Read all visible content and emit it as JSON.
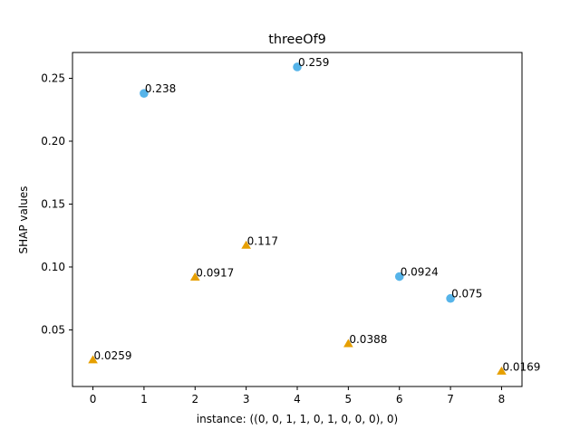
{
  "chart_data": {
    "type": "scatter",
    "title": "threeOf9",
    "xlabel": "instance: ((0, 0, 1, 1, 0, 1, 0, 0, 0), 0)",
    "ylabel": "SHAP values",
    "xlim": [
      -0.4,
      8.4
    ],
    "ylim": [
      0.005,
      0.2705
    ],
    "xticks": [
      0,
      1,
      2,
      3,
      4,
      5,
      6,
      7,
      8
    ],
    "xtick_labels": [
      "0",
      "1",
      "2",
      "3",
      "4",
      "5",
      "6",
      "7",
      "8"
    ],
    "yticks": [
      0.05,
      0.1,
      0.15,
      0.2,
      0.25
    ],
    "ytick_labels": [
      "0.05",
      "0.10",
      "0.15",
      "0.20",
      "0.25"
    ],
    "grid": false,
    "series": [
      {
        "marker": "circle",
        "color": "#56b4e9",
        "x": [
          1,
          4,
          6,
          7
        ],
        "y": [
          0.238,
          0.259,
          0.0924,
          0.075
        ],
        "labels": [
          "0.238",
          "0.259",
          "0.0924",
          "0.075"
        ]
      },
      {
        "marker": "triangle",
        "color": "#e69f00",
        "x": [
          0,
          2,
          3,
          5,
          8
        ],
        "y": [
          0.0259,
          0.0917,
          0.117,
          0.0388,
          0.0169
        ],
        "labels": [
          "0.0259",
          "0.0917",
          "0.117",
          "0.0388",
          "0.0169"
        ]
      }
    ]
  }
}
